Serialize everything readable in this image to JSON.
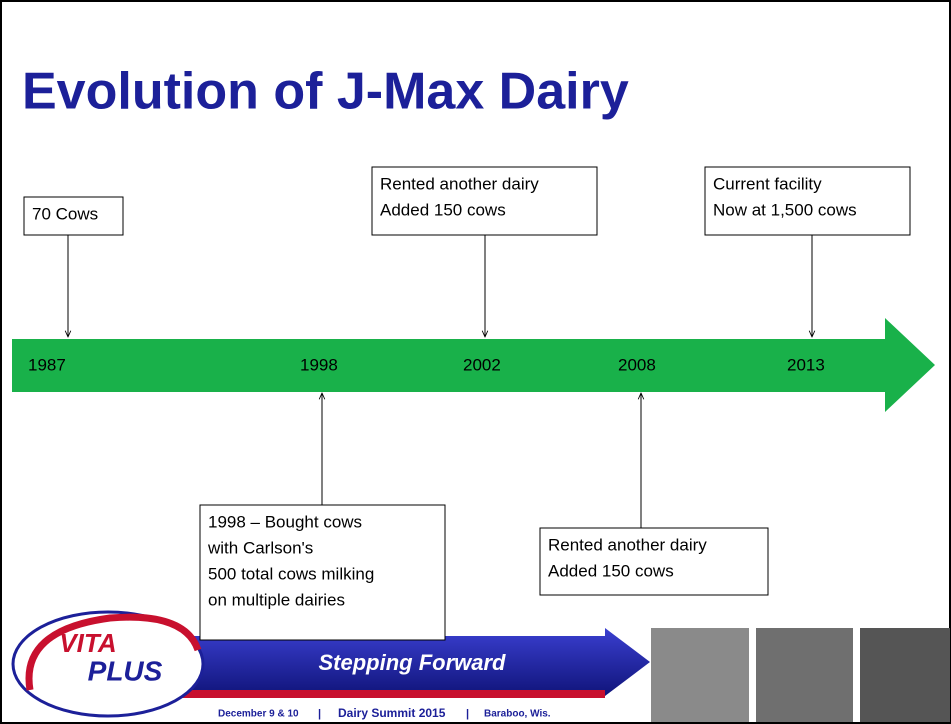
{
  "title": "Evolution of J-Max Dairy",
  "timeline": {
    "years": [
      "1987",
      "1998",
      "2002",
      "2008",
      "2013"
    ]
  },
  "events": [
    {
      "lines": [
        "70 Cows"
      ]
    },
    {
      "lines": [
        "Rented another dairy",
        "Added 150 cows"
      ]
    },
    {
      "lines": [
        "Current facility",
        "Now at 1,500 cows"
      ]
    },
    {
      "lines": [
        "1998 – Bought cows",
        " with Carlson's",
        "500 total cows milking",
        "on multiple dairies"
      ]
    },
    {
      "lines": [
        "Rented another dairy",
        "Added 150 cows"
      ]
    }
  ],
  "footer": {
    "logo": [
      "VITA",
      "PLUS"
    ],
    "banner": "Stepping Forward",
    "date": "December 9 & 10",
    "separator": "|",
    "event": "Dairy Summit 2015",
    "location": "Baraboo, Wis."
  }
}
